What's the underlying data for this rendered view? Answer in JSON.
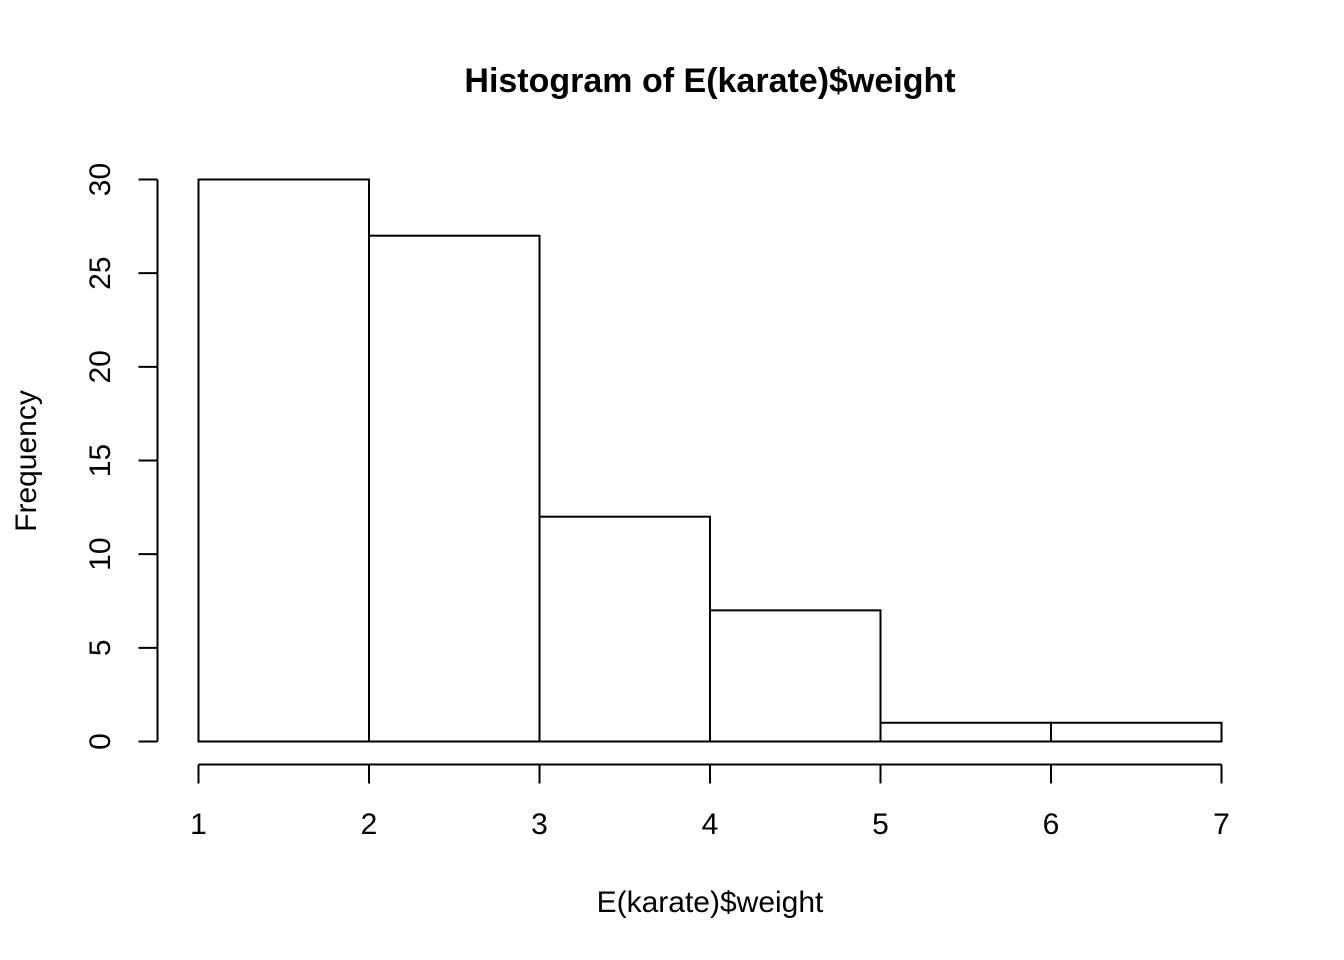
{
  "chart_data": {
    "type": "bar",
    "title": "Histogram of E(karate)$weight",
    "xlabel": "E(karate)$weight",
    "ylabel": "Frequency",
    "bins": [
      {
        "start": 1,
        "end": 2,
        "count": 30
      },
      {
        "start": 2,
        "end": 3,
        "count": 27
      },
      {
        "start": 3,
        "end": 4,
        "count": 12
      },
      {
        "start": 4,
        "end": 5,
        "count": 7
      },
      {
        "start": 5,
        "end": 6,
        "count": 1
      },
      {
        "start": 6,
        "end": 7,
        "count": 1
      }
    ],
    "x_ticks": [
      1,
      2,
      3,
      4,
      5,
      6,
      7
    ],
    "y_ticks": [
      0,
      5,
      10,
      15,
      20,
      25,
      30
    ],
    "xlim": [
      1,
      7
    ],
    "ylim": [
      0,
      30
    ],
    "grid": false,
    "bar_fill": "#ffffff",
    "bar_stroke": "#000000"
  }
}
